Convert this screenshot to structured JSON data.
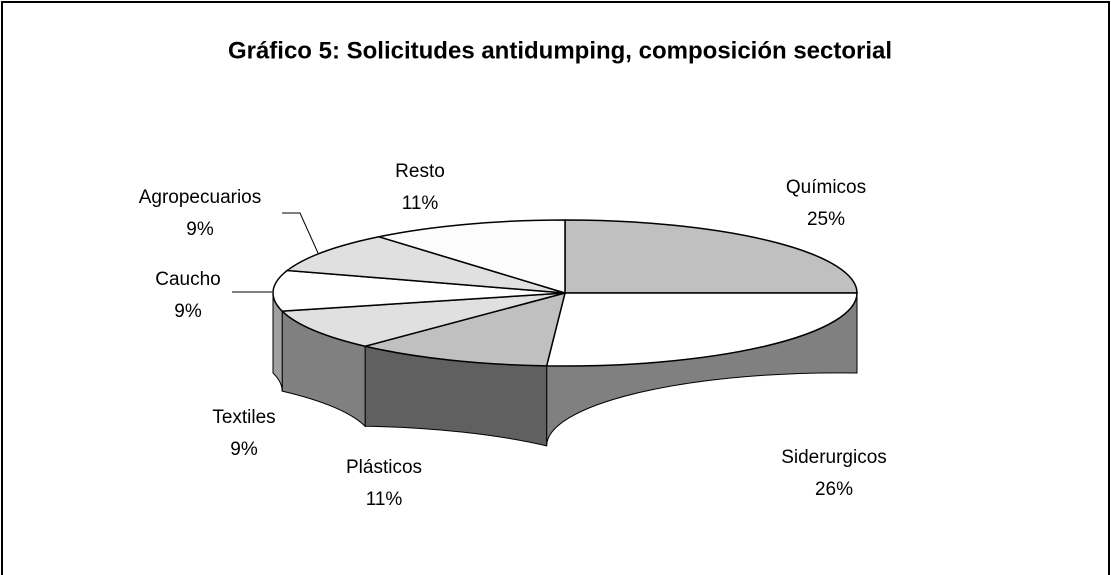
{
  "chart_data": {
    "type": "pie3d",
    "title": "Gráfico 5: Solicitudes antidumping, composición sectorial",
    "categories": [
      "Químicos",
      "Siderurgicos",
      "Plásticos",
      "Textiles",
      "Caucho",
      "Agropecuarios",
      "Resto"
    ],
    "values": [
      25,
      26,
      11,
      9,
      9,
      9,
      11
    ],
    "value_labels": [
      "25%",
      "26%",
      "11%",
      "9%",
      "9%",
      "9%",
      "11%"
    ],
    "colors": [
      "#c0c0c0",
      "#ffffff",
      "#c0c0c0",
      "#e0e0e0",
      "#ffffff",
      "#e0e0e0",
      "#fcfcfc"
    ],
    "side_colors": [
      "#909090",
      "#808080",
      "#606060",
      "#808080",
      "#a0a0a0",
      "#a0a0a0",
      "#a0a0a0"
    ]
  }
}
